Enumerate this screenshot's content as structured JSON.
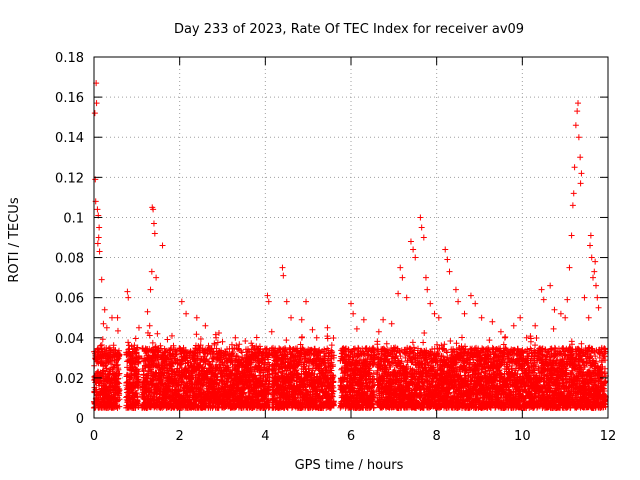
{
  "chart_data": {
    "type": "scatter",
    "title": "Day 233 of 2023, Rate Of TEC Index for receiver av09",
    "xlabel": "GPS time / hours",
    "ylabel": "ROTI / TECUs",
    "xlim": [
      0,
      12
    ],
    "ylim": [
      0,
      0.18
    ],
    "x_ticks": [
      "0",
      "2",
      "4",
      "6",
      "8",
      "10",
      "12"
    ],
    "y_ticks": [
      "0",
      "0.02",
      "0.04",
      "0.06",
      "0.08",
      "0.1",
      "0.12",
      "0.14",
      "0.16",
      "0.18"
    ],
    "grid": true,
    "marker": "+",
    "color": "#ff0000",
    "series": [
      {
        "points": [
          [
            0.02,
            0.152
          ],
          [
            0.05,
            0.167
          ],
          [
            0.06,
            0.157
          ],
          [
            0.03,
            0.119
          ],
          [
            0.04,
            0.108
          ],
          [
            0.08,
            0.104
          ],
          [
            0.1,
            0.101
          ],
          [
            0.12,
            0.095
          ],
          [
            0.11,
            0.09
          ],
          [
            0.09,
            0.087
          ],
          [
            0.13,
            0.083
          ],
          [
            0.18,
            0.069
          ],
          [
            0.25,
            0.054
          ],
          [
            0.22,
            0.047
          ],
          [
            0.3,
            0.045
          ],
          [
            0.42,
            0.05
          ],
          [
            0.55,
            0.05
          ],
          [
            0.78,
            0.063
          ],
          [
            0.8,
            0.06
          ],
          [
            1.05,
            0.045
          ],
          [
            1.25,
            0.053
          ],
          [
            1.3,
            0.046
          ],
          [
            1.35,
            0.073
          ],
          [
            1.32,
            0.064
          ],
          [
            1.36,
            0.105
          ],
          [
            1.38,
            0.104
          ],
          [
            1.4,
            0.097
          ],
          [
            1.42,
            0.092
          ],
          [
            1.45,
            0.07
          ],
          [
            1.6,
            0.086
          ],
          [
            1.48,
            0.042
          ],
          [
            1.55,
            0.036
          ],
          [
            2.05,
            0.058
          ],
          [
            2.15,
            0.052
          ],
          [
            2.4,
            0.05
          ],
          [
            2.6,
            0.046
          ],
          [
            2.85,
            0.04
          ],
          [
            3.0,
            0.038
          ],
          [
            3.3,
            0.04
          ],
          [
            3.7,
            0.036
          ],
          [
            4.05,
            0.061
          ],
          [
            4.08,
            0.058
          ],
          [
            4.15,
            0.043
          ],
          [
            4.4,
            0.075
          ],
          [
            4.42,
            0.071
          ],
          [
            4.5,
            0.058
          ],
          [
            4.6,
            0.05
          ],
          [
            4.85,
            0.049
          ],
          [
            4.95,
            0.058
          ],
          [
            5.1,
            0.044
          ],
          [
            5.2,
            0.04
          ],
          [
            5.45,
            0.045
          ],
          [
            5.6,
            0.03
          ],
          [
            6.0,
            0.057
          ],
          [
            6.05,
            0.052
          ],
          [
            6.3,
            0.049
          ],
          [
            6.65,
            0.043
          ],
          [
            6.75,
            0.049
          ],
          [
            6.95,
            0.047
          ],
          [
            7.1,
            0.062
          ],
          [
            7.15,
            0.075
          ],
          [
            7.2,
            0.07
          ],
          [
            7.3,
            0.06
          ],
          [
            7.4,
            0.088
          ],
          [
            7.45,
            0.084
          ],
          [
            7.5,
            0.08
          ],
          [
            7.62,
            0.1
          ],
          [
            7.65,
            0.095
          ],
          [
            7.7,
            0.09
          ],
          [
            7.75,
            0.07
          ],
          [
            7.78,
            0.064
          ],
          [
            7.85,
            0.057
          ],
          [
            7.95,
            0.052
          ],
          [
            8.05,
            0.05
          ],
          [
            8.2,
            0.084
          ],
          [
            8.25,
            0.079
          ],
          [
            8.3,
            0.073
          ],
          [
            8.45,
            0.064
          ],
          [
            8.5,
            0.058
          ],
          [
            8.65,
            0.052
          ],
          [
            8.8,
            0.061
          ],
          [
            8.9,
            0.057
          ],
          [
            9.05,
            0.05
          ],
          [
            9.3,
            0.048
          ],
          [
            9.5,
            0.043
          ],
          [
            9.8,
            0.046
          ],
          [
            9.95,
            0.05
          ],
          [
            10.1,
            0.04
          ],
          [
            10.2,
            0.038
          ],
          [
            10.3,
            0.046
          ],
          [
            10.45,
            0.064
          ],
          [
            10.5,
            0.059
          ],
          [
            10.65,
            0.066
          ],
          [
            10.75,
            0.054
          ],
          [
            10.9,
            0.052
          ],
          [
            11.0,
            0.05
          ],
          [
            11.05,
            0.059
          ],
          [
            11.1,
            0.075
          ],
          [
            11.15,
            0.091
          ],
          [
            11.18,
            0.106
          ],
          [
            11.2,
            0.112
          ],
          [
            11.22,
            0.125
          ],
          [
            11.25,
            0.146
          ],
          [
            11.28,
            0.153
          ],
          [
            11.3,
            0.157
          ],
          [
            11.32,
            0.14
          ],
          [
            11.35,
            0.13
          ],
          [
            11.36,
            0.117
          ],
          [
            11.38,
            0.122
          ],
          [
            11.45,
            0.06
          ],
          [
            11.55,
            0.05
          ],
          [
            11.58,
            0.086
          ],
          [
            11.6,
            0.091
          ],
          [
            11.62,
            0.08
          ],
          [
            11.65,
            0.07
          ],
          [
            11.68,
            0.073
          ],
          [
            11.7,
            0.078
          ],
          [
            11.72,
            0.066
          ],
          [
            11.75,
            0.06
          ],
          [
            11.78,
            0.055
          ]
        ],
        "dense_band": {
          "x_range": [
            0,
            11.95
          ],
          "typical_range": [
            0.005,
            0.035
          ],
          "gaps": [
            [
              0.6,
              0.75
            ],
            [
              1.05,
              1.12
            ],
            [
              4.1,
              4.15
            ],
            [
              5.6,
              5.75
            ],
            [
              6.55,
              6.6
            ]
          ]
        }
      }
    ]
  }
}
